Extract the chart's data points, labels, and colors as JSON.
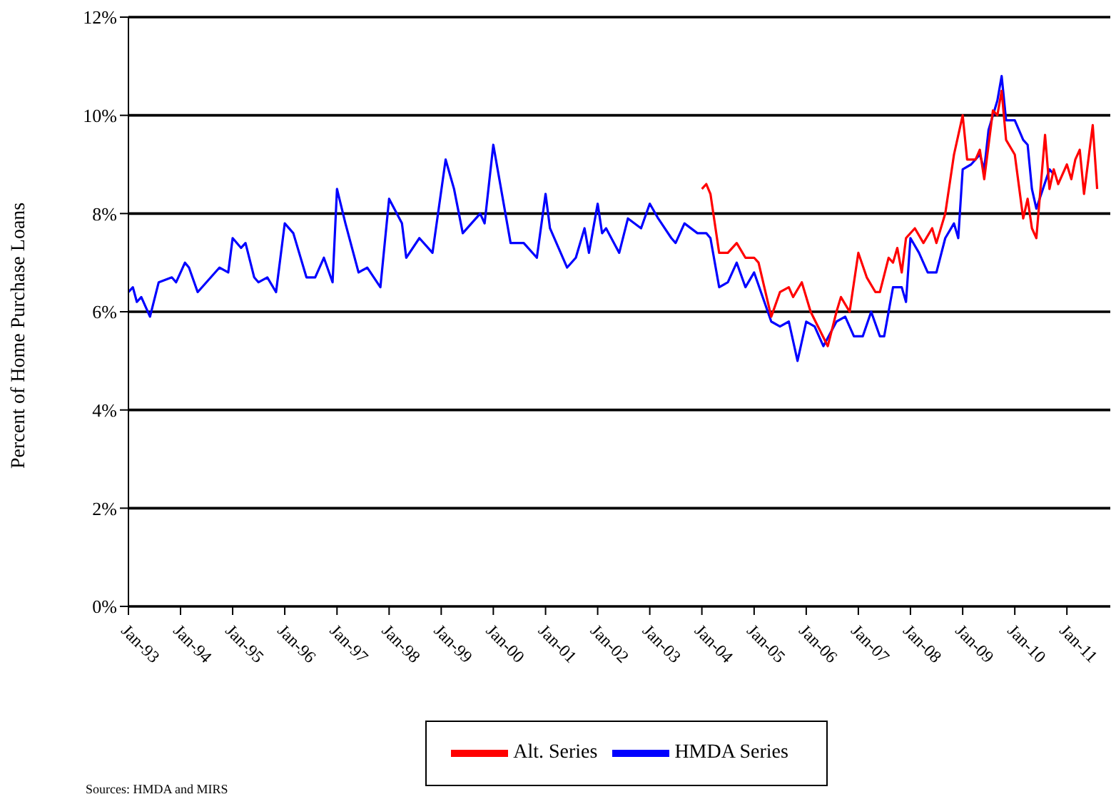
{
  "chart_data": {
    "type": "line",
    "ylabel": "Percent of Home Purchase Loans",
    "annotations": [
      "Sources: HMDA and MIRS"
    ],
    "xlim": [
      "1993-01",
      "2011-11"
    ],
    "xticks": [
      {
        "value": "1993-01",
        "label": "Jan-93"
      },
      {
        "value": "1994-01",
        "label": "Jan-94"
      },
      {
        "value": "1995-01",
        "label": "Jan-95"
      },
      {
        "value": "1996-01",
        "label": "Jan-96"
      },
      {
        "value": "1997-01",
        "label": "Jan-97"
      },
      {
        "value": "1998-01",
        "label": "Jan-98"
      },
      {
        "value": "1999-01",
        "label": "Jan-99"
      },
      {
        "value": "2000-01",
        "label": "Jan-00"
      },
      {
        "value": "2001-01",
        "label": "Jan-01"
      },
      {
        "value": "2002-01",
        "label": "Jan-02"
      },
      {
        "value": "2003-01",
        "label": "Jan-03"
      },
      {
        "value": "2004-01",
        "label": "Jan-04"
      },
      {
        "value": "2005-01",
        "label": "Jan-05"
      },
      {
        "value": "2006-01",
        "label": "Jan-06"
      },
      {
        "value": "2007-01",
        "label": "Jan-07"
      },
      {
        "value": "2008-01",
        "label": "Jan-08"
      },
      {
        "value": "2009-01",
        "label": "Jan-09"
      },
      {
        "value": "2010-01",
        "label": "Jan-10"
      },
      {
        "value": "2011-01",
        "label": "Jan-11"
      }
    ],
    "ylim": [
      0,
      12
    ],
    "yticks": [
      {
        "value": 0,
        "label": "0%"
      },
      {
        "value": 2,
        "label": "2%"
      },
      {
        "value": 4,
        "label": "4%"
      },
      {
        "value": 6,
        "label": "6%"
      },
      {
        "value": 8,
        "label": "8%"
      },
      {
        "value": 10,
        "label": "10%"
      },
      {
        "value": 12,
        "label": "12%"
      }
    ],
    "grid": "y",
    "legend": "bottom",
    "marker": "none",
    "line_style": "solid",
    "series": [
      {
        "name": "HMDA Series",
        "color": "#0000ff",
        "x": [
          "1993-01",
          "1993-02",
          "1993-03",
          "1993-04",
          "1993-06",
          "1993-08",
          "1993-11",
          "1993-12",
          "1994-02",
          "1994-03",
          "1994-05",
          "1994-10",
          "1994-12",
          "1995-01",
          "1995-03",
          "1995-04",
          "1995-06",
          "1995-07",
          "1995-09",
          "1995-11",
          "1996-01",
          "1996-03",
          "1996-06",
          "1996-08",
          "1996-10",
          "1996-12",
          "1997-01",
          "1997-03",
          "1997-06",
          "1997-08",
          "1997-11",
          "1998-01",
          "1998-04",
          "1998-05",
          "1998-08",
          "1998-11",
          "1999-02",
          "1999-04",
          "1999-06",
          "1999-08",
          "1999-10",
          "1999-11",
          "2000-01",
          "2000-05",
          "2000-08",
          "2000-11",
          "2001-01",
          "2001-02",
          "2001-06",
          "2001-08",
          "2001-10",
          "2001-11",
          "2002-01",
          "2002-02",
          "2002-03",
          "2002-06",
          "2002-08",
          "2002-11",
          "2003-01",
          "2003-03",
          "2003-06",
          "2003-07",
          "2003-09",
          "2003-12",
          "2004-02",
          "2004-03",
          "2004-05",
          "2004-07",
          "2004-09",
          "2004-11",
          "2005-01",
          "2005-05",
          "2005-07",
          "2005-09",
          "2005-11",
          "2006-01",
          "2006-03",
          "2006-05",
          "2006-08",
          "2006-10",
          "2006-12",
          "2007-02",
          "2007-04",
          "2007-06",
          "2007-07",
          "2007-09",
          "2007-11",
          "2007-12",
          "2008-01",
          "2008-03",
          "2008-05",
          "2008-07",
          "2008-09",
          "2008-11",
          "2008-12",
          "2009-01",
          "2009-03",
          "2009-05",
          "2009-06",
          "2009-07",
          "2009-09",
          "2009-10",
          "2009-11",
          "2010-01",
          "2010-03",
          "2010-04",
          "2010-05",
          "2010-06",
          "2010-09",
          "2010-10"
        ],
        "values": [
          6.4,
          6.5,
          6.2,
          6.3,
          5.9,
          6.6,
          6.7,
          6.6,
          7.0,
          6.9,
          6.4,
          6.9,
          6.8,
          7.5,
          7.3,
          7.4,
          6.7,
          6.6,
          6.7,
          6.4,
          7.8,
          7.6,
          6.7,
          6.7,
          7.1,
          6.6,
          8.5,
          7.8,
          6.8,
          6.9,
          6.5,
          8.3,
          7.8,
          7.1,
          7.5,
          7.2,
          9.1,
          8.5,
          7.6,
          7.8,
          8.0,
          7.8,
          9.4,
          7.4,
          7.4,
          7.1,
          8.4,
          7.7,
          6.9,
          7.1,
          7.7,
          7.2,
          8.2,
          7.6,
          7.7,
          7.2,
          7.9,
          7.7,
          8.2,
          7.9,
          7.5,
          7.4,
          7.8,
          7.6,
          7.6,
          7.5,
          6.5,
          6.6,
          7.0,
          6.5,
          6.8,
          5.8,
          5.7,
          5.8,
          5.0,
          5.8,
          5.7,
          5.3,
          5.8,
          5.9,
          5.5,
          5.5,
          6.0,
          5.5,
          5.5,
          6.5,
          6.5,
          6.2,
          7.5,
          7.2,
          6.8,
          6.8,
          7.5,
          7.8,
          7.5,
          8.9,
          9.0,
          9.2,
          8.9,
          9.7,
          10.3,
          10.8,
          9.9,
          9.9,
          9.5,
          9.4,
          8.5,
          8.1,
          8.9,
          8.8
        ]
      },
      {
        "name": "Alt. Series",
        "color": "#ff0000",
        "x": [
          "2004-01",
          "2004-02",
          "2004-03",
          "2004-05",
          "2004-07",
          "2004-09",
          "2004-11",
          "2005-01",
          "2005-02",
          "2005-05",
          "2005-07",
          "2005-09",
          "2005-10",
          "2005-12",
          "2006-02",
          "2006-06",
          "2006-08",
          "2006-09",
          "2006-11",
          "2007-01",
          "2007-03",
          "2007-05",
          "2007-06",
          "2007-08",
          "2007-09",
          "2007-10",
          "2007-11",
          "2007-12",
          "2008-02",
          "2008-04",
          "2008-06",
          "2008-07",
          "2008-09",
          "2008-11",
          "2009-01",
          "2009-02",
          "2009-04",
          "2009-05",
          "2009-06",
          "2009-08",
          "2009-09",
          "2009-10",
          "2009-11",
          "2010-01",
          "2010-03",
          "2010-04",
          "2010-05",
          "2010-06",
          "2010-08",
          "2010-09",
          "2010-10",
          "2010-11",
          "2011-01",
          "2011-02",
          "2011-03",
          "2011-04",
          "2011-05",
          "2011-07",
          "2011-08"
        ],
        "values": [
          8.5,
          8.6,
          8.4,
          7.2,
          7.2,
          7.4,
          7.1,
          7.1,
          7.0,
          5.9,
          6.4,
          6.5,
          6.3,
          6.6,
          6.0,
          5.3,
          6.0,
          6.3,
          6.0,
          7.2,
          6.7,
          6.4,
          6.4,
          7.1,
          7.0,
          7.3,
          6.8,
          7.5,
          7.7,
          7.4,
          7.7,
          7.4,
          8.0,
          9.2,
          10.0,
          9.1,
          9.1,
          9.3,
          8.7,
          10.1,
          10.0,
          10.5,
          9.5,
          9.2,
          7.9,
          8.3,
          7.7,
          7.5,
          9.6,
          8.5,
          8.9,
          8.6,
          9.0,
          8.7,
          9.1,
          9.3,
          8.4,
          9.8,
          8.5
        ]
      }
    ]
  }
}
